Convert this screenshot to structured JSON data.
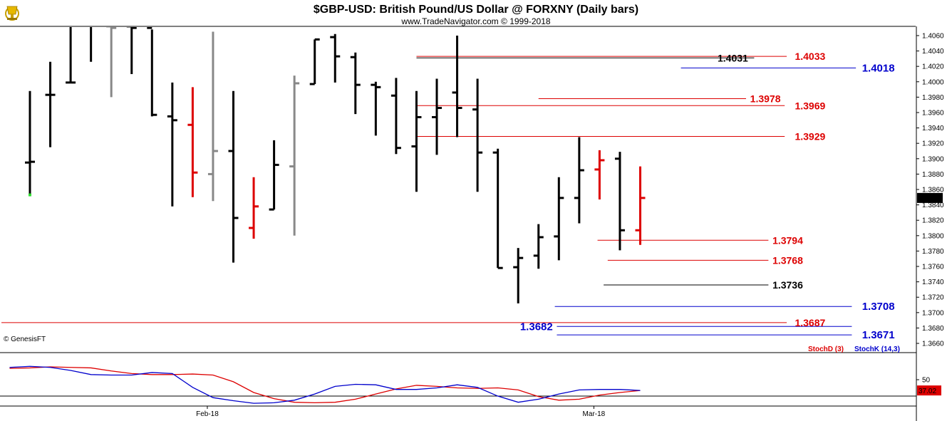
{
  "header": {
    "title": "$GBP-USD:  British Pound/US Dollar @ FORXNY  (Daily bars)",
    "subtitle": "www.TradeNavigator.com © 1999-2018"
  },
  "watermark": "© GenesisFT",
  "logo_icon": "trophy-icon",
  "colors": {
    "up_bar": "#000000",
    "down_bar_red": "#dd0000",
    "gray_bar": "#888888",
    "level_red": "#dd0000",
    "level_blue": "#0000cc",
    "level_black": "#000000",
    "stoch_d": "#dd0000",
    "stoch_k": "#0000cc"
  },
  "chart_data": [
    {
      "type": "ohlc",
      "title": "$GBP-USD:  British Pound/US Dollar @ FORXNY  (Daily bars)",
      "ylim": [
        1.3648,
        1.4072
      ],
      "y_ticks": [
        "1.3660",
        "1.3680",
        "1.3700",
        "1.3720",
        "1.3740",
        "1.3760",
        "1.3780",
        "1.3800",
        "1.3820",
        "1.3840",
        "1.3860",
        "1.3880",
        "1.3900",
        "1.3920",
        "1.3940",
        "1.3960",
        "1.3980",
        "1.4000",
        "1.4020",
        "1.4040",
        "1.4060"
      ],
      "last_price": "1.3849",
      "x_labels": [
        {
          "label": "Feb-18",
          "bar": 9
        },
        {
          "label": "Mar-18",
          "bar": 28
        }
      ],
      "bars": [
        {
          "o": 1.3895,
          "h": 1.3988,
          "l": 1.3853,
          "c": 1.3896,
          "color": "black"
        },
        {
          "o": 1.3983,
          "h": 1.4026,
          "l": 1.3915,
          "c": 1.3983,
          "color": "black"
        },
        {
          "o": 1.3999,
          "h": 1.409,
          "l": 1.3999,
          "c": 1.3999,
          "color": "black"
        },
        {
          "o": 1.4075,
          "h": 1.409,
          "l": 1.4026,
          "c": 1.4075,
          "color": "black"
        },
        {
          "o": 1.4072,
          "h": 1.409,
          "l": 1.398,
          "c": 1.407,
          "color": "gray"
        },
        {
          "o": 1.4072,
          "h": 1.409,
          "l": 1.401,
          "c": 1.407,
          "color": "black"
        },
        {
          "o": 1.407,
          "h": 1.4068,
          "l": 1.3955,
          "c": 1.3957,
          "color": "black"
        },
        {
          "o": 1.3955,
          "h": 1.3999,
          "l": 1.3838,
          "c": 1.395,
          "color": "black"
        },
        {
          "o": 1.3944,
          "h": 1.3993,
          "l": 1.385,
          "c": 1.3882,
          "color": "red"
        },
        {
          "o": 1.388,
          "h": 1.4065,
          "l": 1.3845,
          "c": 1.391,
          "color": "gray"
        },
        {
          "o": 1.391,
          "h": 1.3988,
          "l": 1.3765,
          "c": 1.3823,
          "color": "black"
        },
        {
          "o": 1.381,
          "h": 1.3876,
          "l": 1.3796,
          "c": 1.3838,
          "color": "red"
        },
        {
          "o": 1.3834,
          "h": 1.3924,
          "l": 1.3834,
          "c": 1.3892,
          "color": "black"
        },
        {
          "o": 1.389,
          "h": 1.4008,
          "l": 1.38,
          "c": 1.3998,
          "color": "gray"
        },
        {
          "o": 1.3997,
          "h": 1.4055,
          "l": 1.3997,
          "c": 1.4055,
          "color": "black"
        },
        {
          "o": 1.4058,
          "h": 1.4062,
          "l": 1.3999,
          "c": 1.4033,
          "color": "black"
        },
        {
          "o": 1.4032,
          "h": 1.4038,
          "l": 1.3958,
          "c": 1.3996,
          "color": "black"
        },
        {
          "o": 1.3996,
          "h": 1.4,
          "l": 1.393,
          "c": 1.3993,
          "color": "black"
        },
        {
          "o": 1.3982,
          "h": 1.4005,
          "l": 1.3906,
          "c": 1.3914,
          "color": "black"
        },
        {
          "o": 1.3916,
          "h": 1.3988,
          "l": 1.3857,
          "c": 1.3954,
          "color": "black"
        },
        {
          "o": 1.3954,
          "h": 1.4004,
          "l": 1.3905,
          "c": 1.3966,
          "color": "black"
        },
        {
          "o": 1.3986,
          "h": 1.406,
          "l": 1.3928,
          "c": 1.3966,
          "color": "black"
        },
        {
          "o": 1.3964,
          "h": 1.4004,
          "l": 1.3857,
          "c": 1.3908,
          "color": "black"
        },
        {
          "o": 1.3908,
          "h": 1.3913,
          "l": 1.3758,
          "c": 1.3758,
          "color": "black"
        },
        {
          "o": 1.3759,
          "h": 1.3784,
          "l": 1.3712,
          "c": 1.3771,
          "color": "black"
        },
        {
          "o": 1.3774,
          "h": 1.3815,
          "l": 1.3757,
          "c": 1.3798,
          "color": "black"
        },
        {
          "o": 1.3799,
          "h": 1.3876,
          "l": 1.3768,
          "c": 1.3849,
          "color": "black"
        },
        {
          "o": 1.3849,
          "h": 1.3928,
          "l": 1.3816,
          "c": 1.3885,
          "color": "black"
        },
        {
          "o": 1.3886,
          "h": 1.3911,
          "l": 1.3847,
          "c": 1.3898,
          "color": "red"
        },
        {
          "o": 1.39,
          "h": 1.3909,
          "l": 1.3781,
          "c": 1.3807,
          "color": "black"
        },
        {
          "o": 1.3807,
          "h": 1.389,
          "l": 1.3788,
          "c": 1.3849,
          "color": "red"
        }
      ],
      "levels": [
        {
          "label": "1.4031",
          "value": 1.4031,
          "color": "black",
          "start_bar": 19,
          "end_bar": 35.6,
          "label_bar": 35.3,
          "label_side": "left"
        },
        {
          "label": "1.4033",
          "value": 1.4033,
          "color": "red",
          "start_bar": 19,
          "end_bar": 37.2,
          "label_bar": 37.6,
          "label_side": "right"
        },
        {
          "label": "1.4018",
          "value": 1.4018,
          "color": "blue",
          "start_bar": 32,
          "end_bar": 40.6,
          "label_bar": 40.9,
          "label_side": "right"
        },
        {
          "label": "1.3978",
          "value": 1.3978,
          "color": "red",
          "start_bar": 25,
          "end_bar": 35.2,
          "label_bar": 35.4,
          "label_side": "right"
        },
        {
          "label": "1.3969",
          "value": 1.3969,
          "color": "red",
          "start_bar": 19,
          "end_bar": 37.1,
          "label_bar": 37.6,
          "label_side": "right"
        },
        {
          "label": "1.3929",
          "value": 1.3929,
          "color": "red",
          "start_bar": 19,
          "end_bar": 37.1,
          "label_bar": 37.6,
          "label_side": "right"
        },
        {
          "label": "1.3794",
          "value": 1.3794,
          "color": "red",
          "start_bar": 27.9,
          "end_bar": 36.3,
          "label_bar": 36.5,
          "label_side": "right"
        },
        {
          "label": "1.3768",
          "value": 1.3768,
          "color": "red",
          "start_bar": 28.4,
          "end_bar": 36.3,
          "label_bar": 36.5,
          "label_side": "right"
        },
        {
          "label": "1.3736",
          "value": 1.3736,
          "color": "black",
          "start_bar": 28.2,
          "end_bar": 36.3,
          "label_bar": 36.5,
          "label_side": "right"
        },
        {
          "label": "1.3708",
          "value": 1.3708,
          "color": "blue",
          "start_bar": 25.8,
          "end_bar": 40.4,
          "label_bar": 40.9,
          "label_side": "right"
        },
        {
          "label": "1.3687",
          "value": 1.3687,
          "color": "red",
          "start_bar": -1.4,
          "end_bar": 37.2,
          "label_bar": 37.6,
          "label_side": "right"
        },
        {
          "label": "1.3682",
          "value": 1.3682,
          "color": "blue",
          "start_bar": 25.9,
          "end_bar": 40.4,
          "label_bar": 25.7,
          "label_side": "left"
        },
        {
          "label": "1.3671",
          "value": 1.3671,
          "color": "blue",
          "start_bar": 25.9,
          "end_bar": 40.4,
          "label_bar": 40.9,
          "label_side": "right"
        }
      ]
    },
    {
      "type": "line",
      "title": "Stochastic",
      "ylim": [
        0,
        100
      ],
      "y_ticks": [
        "50"
      ],
      "last_value": "37.02",
      "series": [
        {
          "name": "StochD (3)",
          "color": "#dd0000",
          "values": [
            72,
            73,
            75,
            74,
            73,
            67,
            62,
            60,
            60,
            61,
            59,
            46,
            25,
            13,
            6,
            5,
            6,
            12,
            22,
            32,
            39,
            37,
            34,
            33,
            34,
            30,
            17,
            10,
            12,
            20,
            25,
            29
          ]
        },
        {
          "name": "StochK (14,3)",
          "color": "#0000cc",
          "values": [
            74,
            76,
            74,
            68,
            60,
            59,
            59,
            64,
            62,
            35,
            15,
            9,
            4,
            5,
            10,
            22,
            37,
            41,
            40,
            31,
            31,
            34,
            40,
            35,
            18,
            6,
            12,
            22,
            30,
            31,
            31,
            29
          ]
        }
      ],
      "series_x_offset": -1
    }
  ]
}
